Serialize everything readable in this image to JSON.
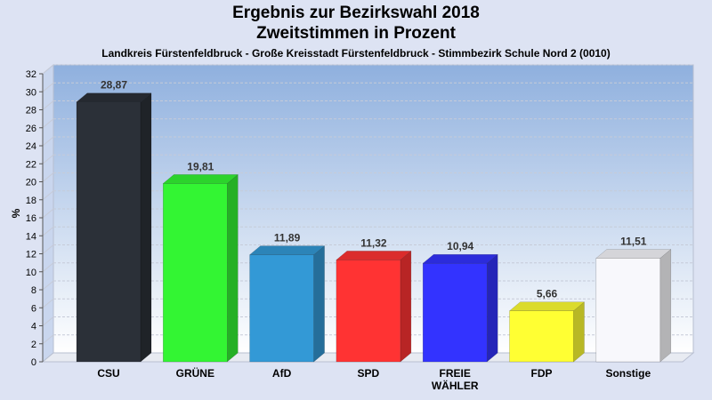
{
  "chart_data": {
    "type": "bar",
    "title": "Ergebnis zur Bezirkswahl 2018",
    "subtitle": "Zweitstimmen in Prozent",
    "caption": "Landkreis Fürstenfeldbruck - Große Kreisstadt Fürstenfeldbruck - Stimmbezirk Schule Nord 2 (0010)",
    "ylabel": "%",
    "xlabel": "",
    "ylim": [
      0,
      32
    ],
    "yticks": [
      0,
      2,
      4,
      6,
      8,
      10,
      12,
      14,
      16,
      18,
      20,
      22,
      24,
      26,
      28,
      30,
      32
    ],
    "grid": true,
    "categories": [
      "CSU",
      "GRÜNE",
      "AfD",
      "SPD",
      "FREIE WÄHLER",
      "FDP",
      "Sonstige"
    ],
    "category_lines": [
      [
        "CSU"
      ],
      [
        "GRÜNE"
      ],
      [
        "AfD"
      ],
      [
        "SPD"
      ],
      [
        "FREIE",
        "WÄHLER"
      ],
      [
        "FDP"
      ],
      [
        "Sonstige"
      ]
    ],
    "values": [
      28.87,
      19.81,
      11.89,
      11.32,
      10.94,
      5.66,
      11.51
    ],
    "value_labels": [
      "28,87",
      "19,81",
      "11,89",
      "11,32",
      "10,94",
      "5,66",
      "11,51"
    ],
    "colors": [
      "#2b3038",
      "#33f533",
      "#3399d6",
      "#ff3333",
      "#3333ff",
      "#ffff33",
      "#f8f8fc"
    ]
  }
}
